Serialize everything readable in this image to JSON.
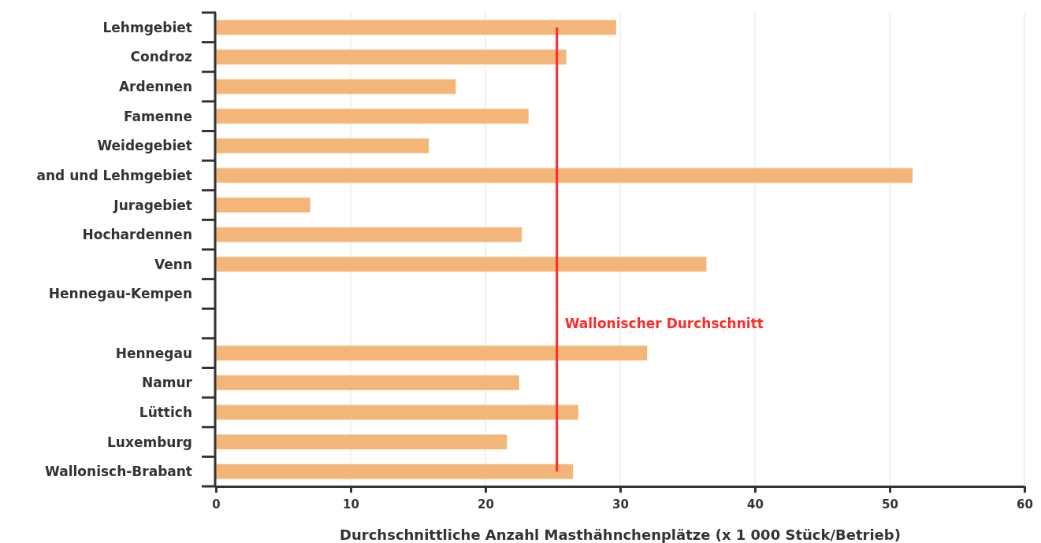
{
  "chart_data": {
    "type": "bar",
    "orientation": "horizontal",
    "xlabel": "Durchschnittliche Anzahl Masthähnchenplätze (x 1 000 Stück/Betrieb)",
    "categories": [
      "Lehmgebiet",
      "Condroz",
      "Ardennen",
      "Famenne",
      "Weidegebiet",
      "and und Lehmgebiet",
      "Juragebiet",
      "Hochardennen",
      "Venn",
      "Hennegau-Kempen",
      null,
      "Hennegau",
      "Namur",
      "Lüttich",
      "Luxemburg",
      "Wallonisch-Brabant"
    ],
    "values": [
      29.7,
      26.0,
      17.8,
      23.2,
      15.8,
      51.7,
      7.0,
      22.7,
      36.4,
      null,
      null,
      32.0,
      22.5,
      26.9,
      21.6,
      26.5
    ],
    "color": "#f4b678",
    "xlim": [
      0,
      60
    ],
    "xticks": [
      0,
      10,
      20,
      30,
      40,
      50,
      60
    ],
    "grid": "x",
    "ref_lines": [
      {
        "axis": "x",
        "value": 25.3,
        "label": "Wallonischer Durchschnitt",
        "color": "#ff2a2a"
      }
    ]
  }
}
